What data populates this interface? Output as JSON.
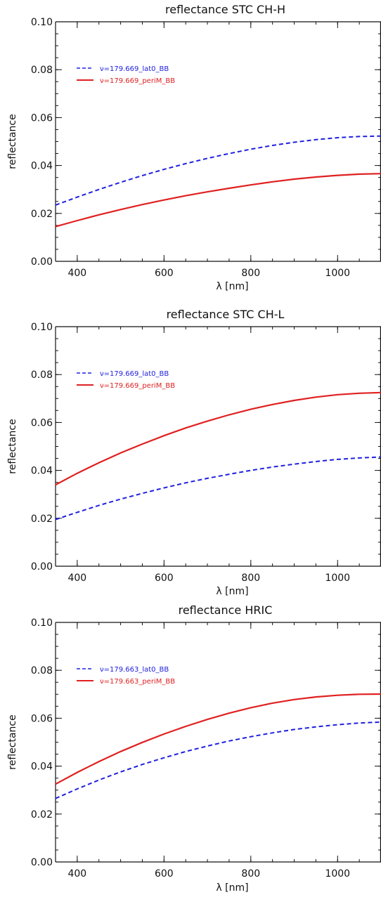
{
  "chart_data": [
    {
      "type": "line",
      "title": "reflectance STC CH-H",
      "xlabel": "λ [nm]",
      "ylabel": "reflectance",
      "xlim": [
        350,
        1100
      ],
      "ylim": [
        0.0,
        0.1
      ],
      "xticks": [
        400,
        600,
        800,
        1000
      ],
      "yticks": [
        "0.00",
        "0.02",
        "0.04",
        "0.06",
        "0.08",
        "0.10"
      ],
      "grid": false,
      "legend_position": "upper-left",
      "series": [
        {
          "name": "ν=179.669_lat0_BB",
          "color": "#2020e0",
          "dash": "dashed",
          "x": [
            350,
            400,
            450,
            500,
            550,
            600,
            650,
            700,
            750,
            800,
            850,
            900,
            950,
            1000,
            1050,
            1100
          ],
          "y": [
            0.0235,
            0.0268,
            0.03,
            0.033,
            0.0358,
            0.0384,
            0.0408,
            0.043,
            0.045,
            0.0468,
            0.0484,
            0.0497,
            0.0508,
            0.0516,
            0.0521,
            0.0523
          ]
        },
        {
          "name": "ν=179.669_periM_BB",
          "color": "#e02020",
          "dash": "solid",
          "x": [
            350,
            400,
            450,
            500,
            550,
            600,
            650,
            700,
            750,
            800,
            850,
            900,
            950,
            1000,
            1050,
            1100
          ],
          "y": [
            0.0145,
            0.017,
            0.0194,
            0.0216,
            0.0237,
            0.0256,
            0.0274,
            0.029,
            0.0305,
            0.0319,
            0.0332,
            0.0343,
            0.0352,
            0.0359,
            0.0364,
            0.0366
          ]
        }
      ]
    },
    {
      "type": "line",
      "title": "reflectance STC CH-L",
      "xlabel": "λ [nm]",
      "ylabel": "reflectance",
      "xlim": [
        350,
        1100
      ],
      "ylim": [
        0.0,
        0.1
      ],
      "xticks": [
        400,
        600,
        800,
        1000
      ],
      "yticks": [
        "0.00",
        "0.02",
        "0.04",
        "0.06",
        "0.08",
        "0.10"
      ],
      "grid": false,
      "legend_position": "upper-left",
      "series": [
        {
          "name": "ν=179.669_lat0_BB",
          "color": "#2020e0",
          "dash": "dashed",
          "x": [
            350,
            400,
            450,
            500,
            550,
            600,
            650,
            700,
            750,
            800,
            850,
            900,
            950,
            1000,
            1050,
            1100
          ],
          "y": [
            0.0195,
            0.0225,
            0.0254,
            0.028,
            0.0304,
            0.0327,
            0.0348,
            0.0367,
            0.0384,
            0.04,
            0.0414,
            0.0426,
            0.0437,
            0.0446,
            0.0452,
            0.0456
          ]
        },
        {
          "name": "ν=179.669_periM_BB",
          "color": "#e02020",
          "dash": "solid",
          "x": [
            350,
            400,
            450,
            500,
            550,
            600,
            650,
            700,
            750,
            800,
            850,
            900,
            950,
            1000,
            1050,
            1100
          ],
          "y": [
            0.034,
            0.0388,
            0.0432,
            0.0473,
            0.051,
            0.0545,
            0.0577,
            0.0606,
            0.0632,
            0.0655,
            0.0675,
            0.0692,
            0.0706,
            0.0716,
            0.0722,
            0.0725
          ]
        }
      ]
    },
    {
      "type": "line",
      "title": "reflectance HRIC",
      "xlabel": "λ [nm]",
      "ylabel": "reflectance",
      "xlim": [
        350,
        1100
      ],
      "ylim": [
        0.0,
        0.1
      ],
      "xticks": [
        400,
        600,
        800,
        1000
      ],
      "yticks": [
        "0.00",
        "0.02",
        "0.04",
        "0.06",
        "0.08",
        "0.10"
      ],
      "grid": false,
      "legend_position": "upper-left",
      "series": [
        {
          "name": "ν=179.663_lat0_BB",
          "color": "#2020e0",
          "dash": "dashed",
          "x": [
            350,
            400,
            450,
            500,
            550,
            600,
            650,
            700,
            750,
            800,
            850,
            900,
            950,
            1000,
            1050,
            1100
          ],
          "y": [
            0.0265,
            0.0305,
            0.0342,
            0.0376,
            0.0407,
            0.0435,
            0.0461,
            0.0484,
            0.0505,
            0.0523,
            0.0539,
            0.0553,
            0.0564,
            0.0573,
            0.058,
            0.0584
          ]
        },
        {
          "name": "ν=179.663_periM_BB",
          "color": "#e02020",
          "dash": "solid",
          "x": [
            350,
            400,
            450,
            500,
            550,
            600,
            650,
            700,
            750,
            800,
            850,
            900,
            950,
            1000,
            1050,
            1100
          ],
          "y": [
            0.0325,
            0.0374,
            0.0419,
            0.0461,
            0.0499,
            0.0534,
            0.0566,
            0.0595,
            0.0621,
            0.0644,
            0.0663,
            0.0678,
            0.0689,
            0.0696,
            0.07,
            0.0701
          ]
        }
      ]
    }
  ]
}
